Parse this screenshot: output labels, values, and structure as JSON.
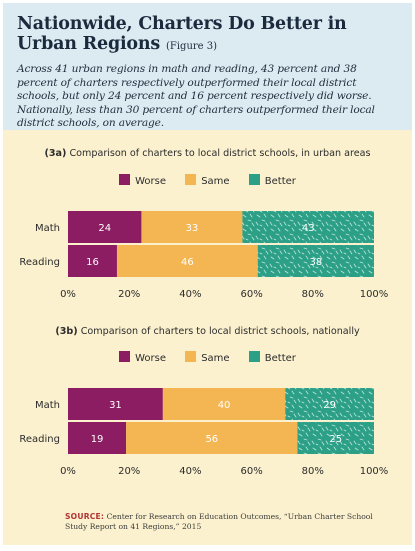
{
  "header": {
    "title_line1": "Nationwide, Charters Do Better in",
    "title_line2": "Urban Regions",
    "figure": "(Figure 3)",
    "intro": "Across 41 urban regions in math and reading, 43 percent and 38 percent of charters respectively outperformed their local district schools, but only 24 percent and 16 percent respectively did worse. Nationally, less than 30 percent of charters outperformed their local district schools, on average."
  },
  "legend": {
    "worse": "Worse",
    "same": "Same",
    "better": "Better"
  },
  "colors": {
    "worse": "#8c1d62",
    "same": "#f4b652",
    "better": "#2c9f87",
    "background": "#fbf1cf",
    "header_bg": "#dcebf2"
  },
  "chart_data": [
    {
      "type": "bar",
      "orientation": "horizontal-stacked",
      "id_label": "(3a)",
      "title": "Comparison of charters to local district schools, in urban areas",
      "categories": [
        "Math",
        "Reading"
      ],
      "series": [
        {
          "name": "Worse",
          "values": [
            24,
            16
          ]
        },
        {
          "name": "Same",
          "values": [
            33,
            46
          ]
        },
        {
          "name": "Better",
          "values": [
            43,
            38
          ]
        }
      ],
      "xlim": [
        0,
        100
      ],
      "xticks": [
        "0%",
        "20%",
        "40%",
        "60%",
        "80%",
        "100%"
      ],
      "legend_position": "top",
      "grid": false
    },
    {
      "type": "bar",
      "orientation": "horizontal-stacked",
      "id_label": "(3b)",
      "title": "Comparison of charters to local district schools, nationally",
      "categories": [
        "Math",
        "Reading"
      ],
      "series": [
        {
          "name": "Worse",
          "values": [
            31,
            19
          ]
        },
        {
          "name": "Same",
          "values": [
            40,
            56
          ]
        },
        {
          "name": "Better",
          "values": [
            29,
            25
          ]
        }
      ],
      "xlim": [
        0,
        100
      ],
      "xticks": [
        "0%",
        "20%",
        "40%",
        "60%",
        "80%",
        "100%"
      ],
      "legend_position": "top",
      "grid": false
    }
  ],
  "source": {
    "label": "SOURCE:",
    "text": "Center for Research on Education Outcomes, “Urban Charter School Study Report on 41 Regions,” 2015"
  }
}
